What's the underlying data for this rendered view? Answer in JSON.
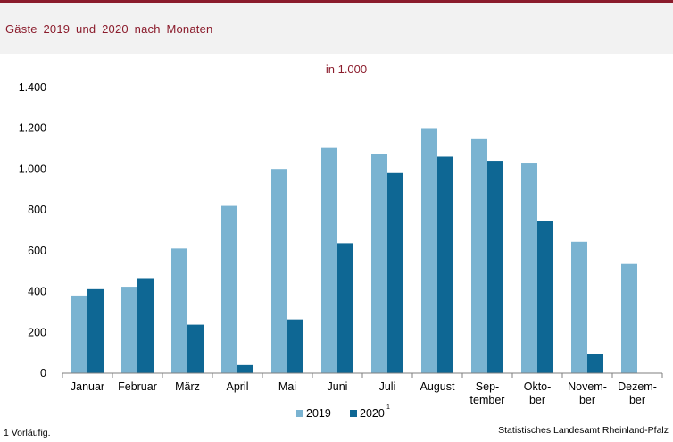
{
  "header": {
    "title": "Gäste 2019 und 2020 nach Monaten"
  },
  "chart_data": {
    "type": "bar",
    "unit_label": "in 1.000",
    "categories": [
      "Januar",
      "Februar",
      "März",
      "April",
      "Mai",
      "Juni",
      "Juli",
      "August",
      "Sep-|tember",
      "Okto-|ber",
      "Novem-|ber",
      "Dezem-|ber"
    ],
    "series": [
      {
        "name": "2019",
        "color": "#7ab3d1",
        "values": [
          381,
          424,
          611,
          820,
          1001,
          1104,
          1074,
          1201,
          1147,
          1028,
          644,
          535
        ]
      },
      {
        "name": "2020",
        "color": "#0e6794",
        "values": [
          412,
          466,
          238,
          40,
          264,
          637,
          981,
          1061,
          1041,
          745,
          95,
          null
        ]
      }
    ],
    "series_note": {
      "2020": "1"
    },
    "ylim": [
      0,
      1400
    ],
    "yticks": [
      0,
      200,
      400,
      600,
      800,
      1000,
      1200,
      1400
    ],
    "ytick_labels": [
      "0",
      "200",
      "400",
      "600",
      "800",
      "1.000",
      "1.200",
      "1.400"
    ],
    "grid": false,
    "legend": "bottom-center"
  },
  "footnote": "1 Vorläufig.",
  "source": "Statistisches Landesamt Rheinland-Pfalz"
}
